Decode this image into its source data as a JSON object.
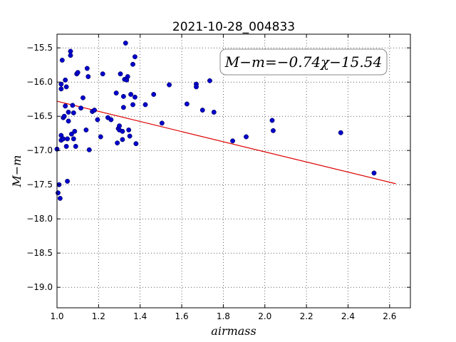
{
  "chart_data": {
    "type": "scatter",
    "title": "2021-10-28_004833",
    "xlabel": "airmass",
    "ylabel": "M−m",
    "xlim": [
      1.0,
      2.7
    ],
    "ylim": [
      -19.3,
      -15.3
    ],
    "x_ticks": [
      "1.0",
      "1.2",
      "1.4",
      "1.6",
      "1.8",
      "2.0",
      "2.2",
      "2.4",
      "2.6"
    ],
    "x_tick_values": [
      1.0,
      1.2,
      1.4,
      1.6,
      1.8,
      2.0,
      2.2,
      2.4,
      2.6
    ],
    "y_ticks": [
      "−15.5",
      "−16.0",
      "−16.5",
      "−17.0",
      "−17.5",
      "−18.0",
      "−18.5",
      "−19.0"
    ],
    "y_tick_values": [
      -15.5,
      -16.0,
      -16.5,
      -17.0,
      -17.5,
      -18.0,
      -18.5,
      -19.0
    ],
    "grid": true,
    "legend_placement": "top-right",
    "annotation": "M−m=−0.74χ−15.54",
    "marker_color": "#0000cc",
    "fit_color": "#dd0000",
    "fit": {
      "slope": -0.74,
      "intercept": -15.54,
      "x_range": [
        1.0,
        2.63
      ]
    },
    "points": [
      {
        "x": 1.0,
        "y": -16.98
      },
      {
        "x": 1.005,
        "y": -17.62
      },
      {
        "x": 1.01,
        "y": -17.5
      },
      {
        "x": 1.015,
        "y": -17.7
      },
      {
        "x": 1.02,
        "y": -16.85
      },
      {
        "x": 1.02,
        "y": -16.78
      },
      {
        "x": 1.02,
        "y": -16.03
      },
      {
        "x": 1.02,
        "y": -16.1
      },
      {
        "x": 1.025,
        "y": -15.68
      },
      {
        "x": 1.03,
        "y": -16.52
      },
      {
        "x": 1.03,
        "y": -16.83
      },
      {
        "x": 1.035,
        "y": -16.5
      },
      {
        "x": 1.04,
        "y": -16.35
      },
      {
        "x": 1.04,
        "y": -15.97
      },
      {
        "x": 1.045,
        "y": -16.07
      },
      {
        "x": 1.045,
        "y": -16.94
      },
      {
        "x": 1.05,
        "y": -16.83
      },
      {
        "x": 1.05,
        "y": -17.45
      },
      {
        "x": 1.055,
        "y": -16.44
      },
      {
        "x": 1.055,
        "y": -16.57
      },
      {
        "x": 1.065,
        "y": -15.55
      },
      {
        "x": 1.065,
        "y": -15.61
      },
      {
        "x": 1.07,
        "y": -16.76
      },
      {
        "x": 1.075,
        "y": -16.34
      },
      {
        "x": 1.08,
        "y": -16.45
      },
      {
        "x": 1.08,
        "y": -16.83
      },
      {
        "x": 1.085,
        "y": -16.72
      },
      {
        "x": 1.09,
        "y": -16.94
      },
      {
        "x": 1.095,
        "y": -15.88
      },
      {
        "x": 1.1,
        "y": -15.86
      },
      {
        "x": 1.115,
        "y": -16.38
      },
      {
        "x": 1.125,
        "y": -16.23
      },
      {
        "x": 1.14,
        "y": -16.7
      },
      {
        "x": 1.145,
        "y": -15.8
      },
      {
        "x": 1.15,
        "y": -15.92
      },
      {
        "x": 1.155,
        "y": -16.99
      },
      {
        "x": 1.17,
        "y": -16.43
      },
      {
        "x": 1.18,
        "y": -16.41
      },
      {
        "x": 1.195,
        "y": -16.55
      },
      {
        "x": 1.21,
        "y": -16.8
      },
      {
        "x": 1.22,
        "y": -15.88
      },
      {
        "x": 1.245,
        "y": -16.52
      },
      {
        "x": 1.26,
        "y": -16.55
      },
      {
        "x": 1.285,
        "y": -16.16
      },
      {
        "x": 1.29,
        "y": -16.89
      },
      {
        "x": 1.295,
        "y": -16.68
      },
      {
        "x": 1.3,
        "y": -16.64
      },
      {
        "x": 1.3,
        "y": -16.7
      },
      {
        "x": 1.305,
        "y": -15.88
      },
      {
        "x": 1.315,
        "y": -16.72
      },
      {
        "x": 1.315,
        "y": -16.84
      },
      {
        "x": 1.32,
        "y": -16.37
      },
      {
        "x": 1.32,
        "y": -16.21
      },
      {
        "x": 1.325,
        "y": -15.96
      },
      {
        "x": 1.33,
        "y": -15.43
      },
      {
        "x": 1.335,
        "y": -15.97
      },
      {
        "x": 1.34,
        "y": -15.92
      },
      {
        "x": 1.345,
        "y": -16.7
      },
      {
        "x": 1.35,
        "y": -16.79
      },
      {
        "x": 1.355,
        "y": -16.18
      },
      {
        "x": 1.365,
        "y": -15.74
      },
      {
        "x": 1.365,
        "y": -16.33
      },
      {
        "x": 1.375,
        "y": -16.22
      },
      {
        "x": 1.375,
        "y": -15.63
      },
      {
        "x": 1.38,
        "y": -16.9
      },
      {
        "x": 1.425,
        "y": -16.33
      },
      {
        "x": 1.465,
        "y": -16.18
      },
      {
        "x": 1.505,
        "y": -16.6
      },
      {
        "x": 1.54,
        "y": -16.04
      },
      {
        "x": 1.625,
        "y": -16.32
      },
      {
        "x": 1.67,
        "y": -16.03
      },
      {
        "x": 1.67,
        "y": -16.07
      },
      {
        "x": 1.7,
        "y": -16.41
      },
      {
        "x": 1.735,
        "y": -15.98
      },
      {
        "x": 1.755,
        "y": -16.44
      },
      {
        "x": 1.845,
        "y": -16.86
      },
      {
        "x": 1.91,
        "y": -16.8
      },
      {
        "x": 2.035,
        "y": -16.56
      },
      {
        "x": 2.04,
        "y": -16.71
      },
      {
        "x": 2.365,
        "y": -16.74
      },
      {
        "x": 2.525,
        "y": -17.33
      }
    ]
  }
}
